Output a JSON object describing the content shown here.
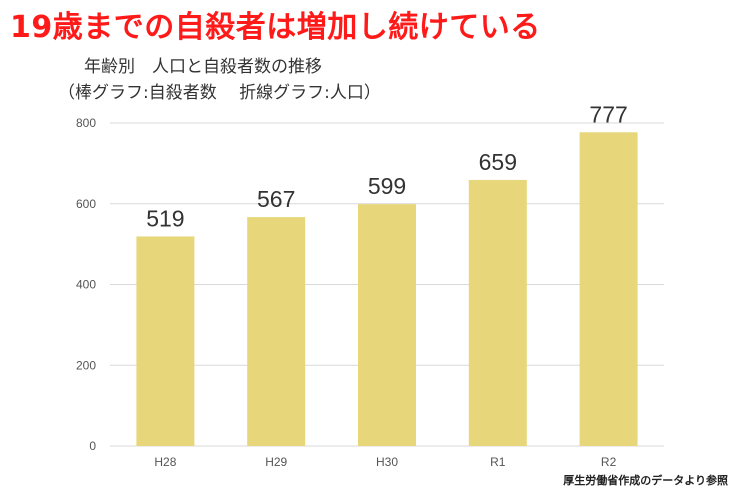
{
  "headline": "19歳までの自殺者は増加し続けている",
  "subtitle_line1": "年齢別　人口と自殺者数の推移",
  "subtitle_line2": "（棒グラフ:自殺者数　 折線グラフ:人口）",
  "source_note": "厚生労働省作成のデータより参照",
  "chart_data": {
    "type": "bar",
    "title": "年齢別　人口と自殺者数の推移",
    "categories": [
      "H28",
      "H29",
      "H30",
      "R1",
      "R2"
    ],
    "values": [
      519,
      567,
      599,
      659,
      777
    ],
    "data_labels": [
      "519",
      "567",
      "599",
      "659",
      "777"
    ],
    "y_ticks": [
      "0",
      "200",
      "400",
      "600",
      "800"
    ],
    "ylim": [
      0,
      800
    ],
    "grid": true,
    "bar_color": "#e8d77a"
  },
  "colors": {
    "headline": "#ff1a1a",
    "bar": "#e8d77a",
    "grid": "#d9d9d9"
  }
}
